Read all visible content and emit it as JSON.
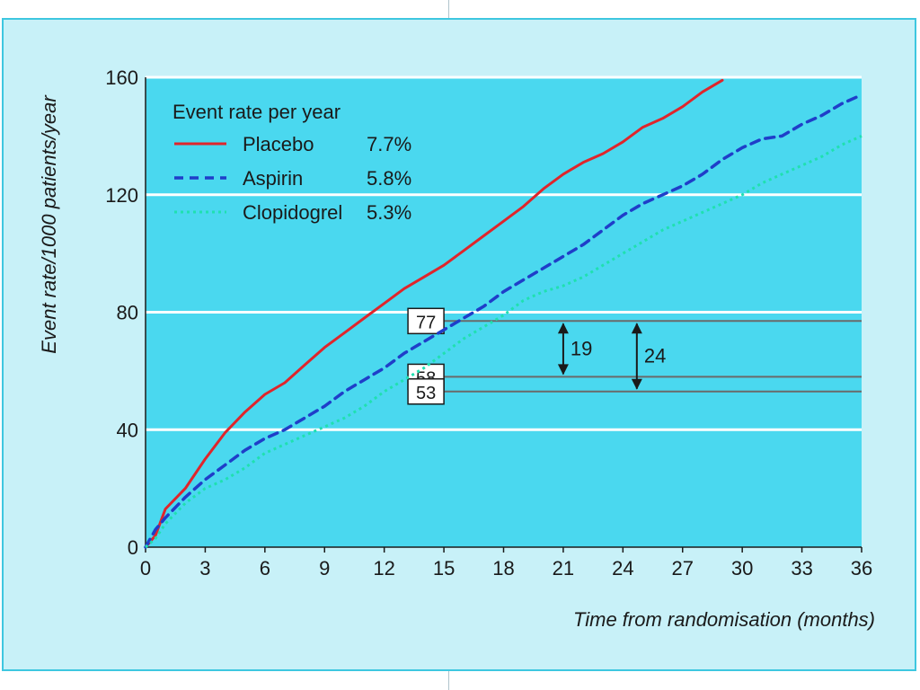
{
  "chart_data": {
    "type": "line",
    "xlabel": "Time from randomisation (months)",
    "ylabel": "Event rate/1000 patients/year",
    "xlim": [
      0,
      36
    ],
    "ylim": [
      0,
      160
    ],
    "x_ticks": [
      "0",
      "3",
      "6",
      "9",
      "12",
      "15",
      "18",
      "21",
      "24",
      "27",
      "30",
      "33",
      "36"
    ],
    "y_ticks": [
      "0",
      "40",
      "80",
      "120",
      "160"
    ],
    "grid": "horizontal",
    "legend": {
      "title": "Event rate per year",
      "placement": "top-left",
      "entries": [
        {
          "name": "Placebo",
          "rate": "7.7%"
        },
        {
          "name": "Aspirin",
          "rate": "5.8%"
        },
        {
          "name": "Clopidogrel",
          "rate": "5.3%"
        }
      ]
    },
    "series": [
      {
        "name": "Placebo",
        "color": "#e0252b",
        "style": "solid",
        "points": [
          [
            0,
            0
          ],
          [
            0.5,
            4
          ],
          [
            1,
            13
          ],
          [
            2,
            20
          ],
          [
            3,
            30
          ],
          [
            4,
            39
          ],
          [
            5,
            46
          ],
          [
            6,
            52
          ],
          [
            7,
            56
          ],
          [
            8,
            62
          ],
          [
            9,
            68
          ],
          [
            10,
            73
          ],
          [
            11,
            78
          ],
          [
            12,
            83
          ],
          [
            13,
            88
          ],
          [
            14,
            92
          ],
          [
            15,
            96
          ],
          [
            16,
            101
          ],
          [
            17,
            106
          ],
          [
            18,
            111
          ],
          [
            19,
            116
          ],
          [
            20,
            122
          ],
          [
            21,
            127
          ],
          [
            22,
            131
          ],
          [
            23,
            134
          ],
          [
            24,
            138
          ],
          [
            25,
            143
          ],
          [
            26,
            146
          ],
          [
            27,
            150
          ],
          [
            28,
            155
          ],
          [
            29,
            159
          ]
        ]
      },
      {
        "name": "Aspirin",
        "color": "#1f3ec9",
        "style": "dashed",
        "points": [
          [
            0,
            0
          ],
          [
            0.5,
            6
          ],
          [
            1,
            10
          ],
          [
            2,
            17
          ],
          [
            3,
            23
          ],
          [
            4,
            28
          ],
          [
            5,
            33
          ],
          [
            6,
            37
          ],
          [
            7,
            40
          ],
          [
            8,
            44
          ],
          [
            9,
            48
          ],
          [
            10,
            53
          ],
          [
            11,
            57
          ],
          [
            12,
            61
          ],
          [
            13,
            66
          ],
          [
            14,
            70
          ],
          [
            15,
            74
          ],
          [
            16,
            78
          ],
          [
            17,
            82
          ],
          [
            18,
            87
          ],
          [
            19,
            91
          ],
          [
            20,
            95
          ],
          [
            21,
            99
          ],
          [
            22,
            103
          ],
          [
            23,
            108
          ],
          [
            24,
            113
          ],
          [
            25,
            117
          ],
          [
            26,
            120
          ],
          [
            27,
            123
          ],
          [
            28,
            127
          ],
          [
            29,
            132
          ],
          [
            30,
            136
          ],
          [
            31,
            139
          ],
          [
            32,
            140
          ],
          [
            33,
            144
          ],
          [
            34,
            147
          ],
          [
            35,
            151
          ],
          [
            36,
            154
          ]
        ]
      },
      {
        "name": "Clopidogrel",
        "color": "#1fe0b0",
        "style": "dotted",
        "points": [
          [
            0,
            0
          ],
          [
            0.5,
            3
          ],
          [
            1,
            8
          ],
          [
            2,
            15
          ],
          [
            3,
            20
          ],
          [
            4,
            23
          ],
          [
            5,
            27
          ],
          [
            6,
            32
          ],
          [
            7,
            35
          ],
          [
            8,
            38
          ],
          [
            9,
            41
          ],
          [
            10,
            44
          ],
          [
            11,
            48
          ],
          [
            12,
            53
          ],
          [
            13,
            57
          ],
          [
            14,
            61
          ],
          [
            15,
            66
          ],
          [
            16,
            71
          ],
          [
            17,
            75
          ],
          [
            18,
            79
          ],
          [
            19,
            84
          ],
          [
            20,
            87
          ],
          [
            21,
            89
          ],
          [
            22,
            92
          ],
          [
            23,
            96
          ],
          [
            24,
            100
          ],
          [
            25,
            104
          ],
          [
            26,
            108
          ],
          [
            27,
            111
          ],
          [
            28,
            114
          ],
          [
            29,
            117
          ],
          [
            30,
            120
          ],
          [
            31,
            124
          ],
          [
            32,
            127
          ],
          [
            33,
            130
          ],
          [
            34,
            133
          ],
          [
            35,
            137
          ],
          [
            36,
            140
          ]
        ]
      }
    ],
    "annotations": {
      "level_labels": [
        "77",
        "58",
        "53"
      ],
      "level_values": [
        77,
        58,
        53
      ],
      "level_x_start": 15,
      "differences": [
        {
          "label": "19",
          "from": 77,
          "to": 58,
          "x": 21
        },
        {
          "label": "24",
          "from": 77,
          "to": 53,
          "x": 24.7
        }
      ]
    }
  }
}
